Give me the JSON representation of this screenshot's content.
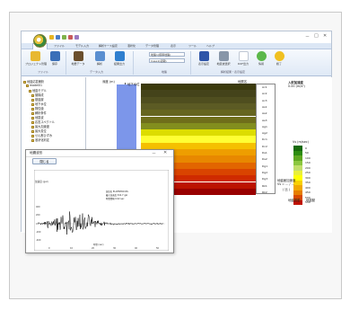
{
  "app": {
    "window_controls": [
      "－",
      "□",
      "✕"
    ],
    "menu": [
      "ホーム",
      "ファイル",
      "モデル入力",
      "解析ケース設定",
      "液状化",
      "データ管理",
      "表示",
      "ツール",
      "ヘルプ"
    ],
    "ribbon_buttons": [
      "プロジェクト管理",
      "保存",
      "地層データ",
      "解析",
      "結果出力",
      "表示設定",
      "地震波選択",
      "DXF出力",
      "情報",
      "終了"
    ],
    "combo_values": [
      "地盤1(標準地盤)",
      "Case1(初期)"
    ],
    "groups": [
      "ファイル",
      "データ入力",
      "地盤",
      "解析結果・表示設定"
    ]
  },
  "tree": {
    "items": [
      "地盤応答解析",
      "model01",
      "地盤モデル",
      "層構成",
      "基盤層",
      "地下水位",
      "物性値",
      "解析条件",
      "地震波",
      "応答スペクトル",
      "最大加速度",
      "最大変位",
      "せん断ひずみ",
      "液状化判定"
    ]
  },
  "main": {
    "depth_header": "深度 (m)",
    "column_tag": "地下水位",
    "layer_header": "地層名",
    "layer_names": [
      "Ac1",
      "Ac2",
      "Ac3",
      "As1",
      "As2",
      "As3",
      "Ag1",
      "Ag2",
      "Dc1",
      "Dc2",
      "Ds1",
      "Ds2",
      "Dg1",
      "Dg2",
      "Dg3",
      "Rk1",
      "Rk2"
    ],
    "layer_colors": [
      "#3b3a0c",
      "#44431a",
      "#4f4e1f",
      "#5c5b24",
      "#66651f",
      "#6f6e1a",
      "#828e1e",
      "#dddd00",
      "#ffff33",
      "#f5c000",
      "#ee9e00",
      "#e88800",
      "#e26500",
      "#d94400",
      "#cf2a00",
      "#bb1200",
      "#990000"
    ],
    "depth_ticks": [
      "0",
      "5",
      "10",
      "15",
      "20"
    ],
    "info_title": "入射加速度",
    "info_value": "0.00 (m/s²)",
    "legend_title": "Vs (m/sec)",
    "legend_values": [
      "0",
      "50",
      "100",
      "150",
      "200",
      "250",
      "300",
      "350",
      "400",
      "450",
      "500",
      "550"
    ],
    "legend_colors": [
      "#176a0a",
      "#2d8c10",
      "#5fa820",
      "#8cc63f",
      "#c2de6a",
      "#e8ef3a",
      "#ffff00",
      "#f8d000",
      "#f0a800",
      "#e67e00",
      "#d84a00",
      "#c01000"
    ],
    "note_line1": "地盤面加速度",
    "note_line2": "Vs = ... / ...",
    "note_line3": "( 比 )",
    "bottom_labels": [
      "地盤振動",
      "地震動"
    ]
  },
  "subwindow": {
    "title": "地震波形",
    "close_button": "閉じる",
    "plot_info_lines": [
      "波形名  ELCENTRO NS",
      "最大加速度  341.7 gal",
      "時間間隔  0.02 sec"
    ],
    "y_axis_label": "加速度 (gal)",
    "y_ticks": [
      "400",
      "200",
      "0",
      "-200",
      "-400"
    ],
    "x_axis_label": "時間 (sec)",
    "x_ticks": [
      "0",
      "10",
      "20",
      "30",
      "40",
      "50"
    ]
  }
}
